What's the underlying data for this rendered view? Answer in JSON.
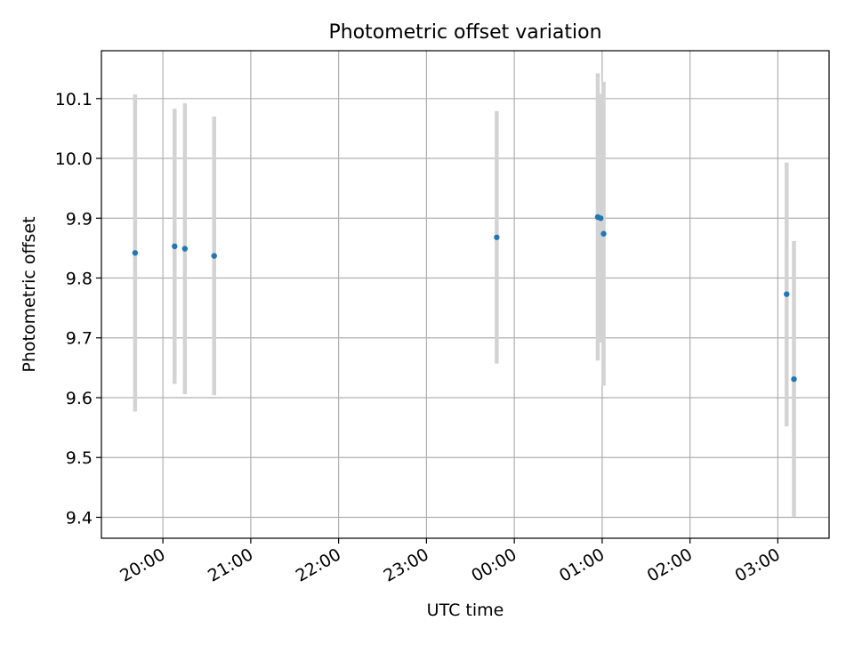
{
  "chart_data": {
    "type": "scatter",
    "title": "Photometric offset variation",
    "xlabel": "UTC time",
    "ylabel": "Photometric offset",
    "x_ticks": [
      "20:00",
      "21:00",
      "22:00",
      "23:00",
      "00:00",
      "01:00",
      "02:00",
      "03:00"
    ],
    "y_ticks": [
      "9.4",
      "9.5",
      "9.6",
      "9.7",
      "9.8",
      "9.9",
      "10.0",
      "10.1"
    ],
    "xlim": [
      "19:18",
      "03:35"
    ],
    "ylim": [
      9.365,
      10.18
    ],
    "grid": true,
    "colors": {
      "marker": "#1f77b4",
      "errorbar": "#d3d3d3",
      "grid": "#b0b0b0",
      "axes": "#000000"
    },
    "series": [
      {
        "points": [
          {
            "x": "19:41",
            "y": 9.842,
            "y_low": 9.577,
            "y_high": 10.107
          },
          {
            "x": "20:08",
            "y": 9.853,
            "y_low": 9.623,
            "y_high": 10.083
          },
          {
            "x": "20:15",
            "y": 9.849,
            "y_low": 9.606,
            "y_high": 10.092
          },
          {
            "x": "20:35",
            "y": 9.837,
            "y_low": 9.604,
            "y_high": 10.07
          },
          {
            "x": "23:48",
            "y": 9.868,
            "y_low": 9.657,
            "y_high": 10.079
          },
          {
            "x": "00:57",
            "y": 9.902,
            "y_low": 9.662,
            "y_high": 10.142
          },
          {
            "x": "00:59",
            "y": 9.9,
            "y_low": 9.692,
            "y_high": 10.108
          },
          {
            "x": "01:01",
            "y": 9.874,
            "y_low": 9.62,
            "y_high": 10.128
          },
          {
            "x": "03:06",
            "y": 9.773,
            "y_low": 9.552,
            "y_high": 9.993
          },
          {
            "x": "03:11",
            "y": 9.631,
            "y_low": 9.401,
            "y_high": 9.862
          }
        ]
      }
    ]
  }
}
